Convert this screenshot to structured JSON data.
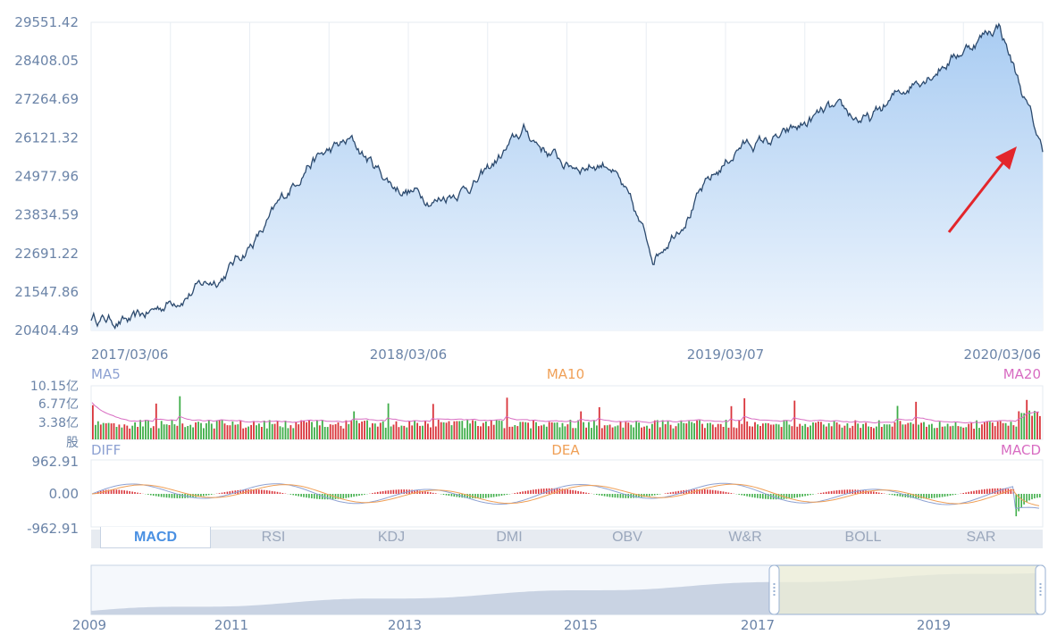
{
  "chart_data": [
    {
      "type": "area",
      "name": "price",
      "yticks": [
        "29551.42",
        "28408.05",
        "27264.69",
        "26121.32",
        "24977.96",
        "23834.59",
        "22691.22",
        "21547.86",
        "20404.49"
      ],
      "ylim": [
        20404.49,
        29551.42
      ],
      "xticks": [
        "2017/03/06",
        "2018/03/06",
        "2019/03/07",
        "2020/03/06"
      ],
      "x": [
        "2017-03",
        "2017-05",
        "2017-07",
        "2017-09",
        "2017-11",
        "2018-01",
        "2018-02",
        "2018-03",
        "2018-05",
        "2018-07",
        "2018-09",
        "2018-10",
        "2018-11",
        "2018-12",
        "2019-01",
        "2019-03",
        "2019-05",
        "2019-07",
        "2019-09",
        "2019-11",
        "2020-01",
        "2020-02",
        "2020-03"
      ],
      "values": [
        20800,
        20650,
        21400,
        22000,
        23400,
        25400,
        26000,
        24700,
        24300,
        24900,
        26300,
        25300,
        25400,
        22600,
        24300,
        25900,
        26100,
        26900,
        26600,
        27800,
        28600,
        29500,
        25700
      ]
    },
    {
      "type": "bar",
      "name": "volume",
      "yticks": [
        "10.15亿",
        "6.77亿",
        "3.38亿",
        "股"
      ],
      "legend": [
        "MA5",
        "MA10",
        "MA20"
      ],
      "legend_colors": [
        "#8da1d2",
        "#f0a057",
        "#d86cc2"
      ]
    },
    {
      "type": "bar",
      "name": "macd",
      "yticks": [
        "962.91",
        "0.00",
        "-962.91"
      ],
      "legend": [
        "DIFF",
        "DEA",
        "MACD"
      ],
      "legend_colors": [
        "#8da1d2",
        "#f0a057",
        "#d86cc2"
      ]
    },
    {
      "type": "area",
      "name": "navigator",
      "xticks": [
        "2009",
        "2011",
        "2013",
        "2015",
        "2017",
        "2019"
      ],
      "selected_range": [
        "2017/03/06",
        "2020/03/06"
      ]
    }
  ],
  "tabs": [
    {
      "label": "MACD",
      "active": true
    },
    {
      "label": "RSI",
      "active": false
    },
    {
      "label": "KDJ",
      "active": false
    },
    {
      "label": "DMI",
      "active": false
    },
    {
      "label": "OBV",
      "active": false
    },
    {
      "label": "W&R",
      "active": false
    },
    {
      "label": "BOLL",
      "active": false
    },
    {
      "label": "SAR",
      "active": false
    }
  ],
  "colors": {
    "line": "#2c4a6e",
    "area_top": "#a9ccf2",
    "area_bottom": "#eef5fd",
    "up": "#d9343a",
    "down": "#3fae49",
    "arrow": "#e3262b",
    "nav_selected": "#eceed6",
    "nav_fill": "#c9d3e3"
  }
}
